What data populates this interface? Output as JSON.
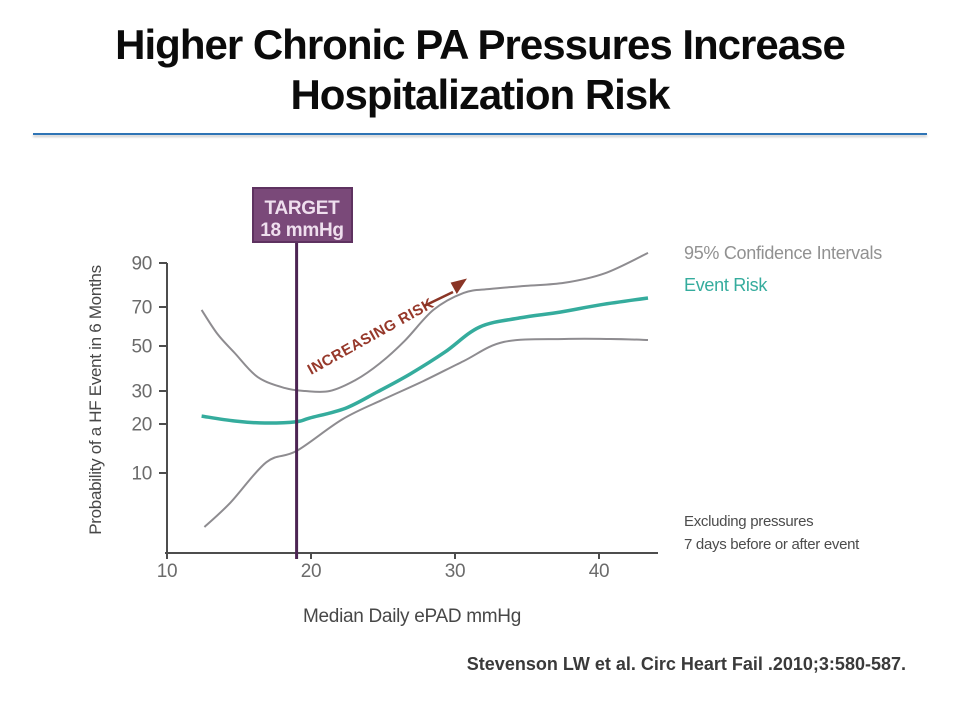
{
  "slide": {
    "title_line1": "Higher Chronic PA Pressures Increase",
    "title_line2": "Hospitalization Risk",
    "citation": "Stevenson LW et al. Circ Heart Fail .2010;3:580-587."
  },
  "chart_data": {
    "type": "line",
    "title": "",
    "xlabel": "Median Daily ePAD mmHg",
    "ylabel": "Probability of a HF Event in 6 Months",
    "x_ticks": [
      10,
      20,
      30,
      40
    ],
    "y_ticks": [
      10,
      20,
      30,
      50,
      70,
      90
    ],
    "xlim": [
      10,
      44
    ],
    "ylim": [
      0,
      95
    ],
    "y_scale": "nonlinear-probability",
    "grid": false,
    "legend_position": "top-right",
    "series": [
      {
        "name": "95% CI upper",
        "color": "#8e8c90",
        "x": [
          12.4,
          13.5,
          14.7,
          16.3,
          18.2,
          19.6,
          21.3,
          23.1,
          24.8,
          26.5,
          28.5,
          30.6,
          32.4,
          34.9,
          37.6,
          40.4,
          43.4
        ],
        "y": [
          68.5,
          56.2,
          46.9,
          36.2,
          31.3,
          30.0,
          30.0,
          34.9,
          42.4,
          52.6,
          68.5,
          76.4,
          78.2,
          79.6,
          81.0,
          85.3,
          92.2
        ]
      },
      {
        "name": "Event Risk",
        "color": "#35ac9d",
        "x": [
          12.4,
          14.7,
          16.8,
          19.0,
          19.9,
          22.4,
          24.6,
          26.9,
          29.3,
          31.7,
          34.5,
          37.3,
          40.1,
          43.4
        ],
        "y": [
          22.4,
          20.9,
          20.3,
          20.7,
          21.8,
          24.8,
          29.7,
          37.6,
          47.3,
          59.7,
          64.4,
          67.4,
          71.0,
          74.1
        ]
      },
      {
        "name": "95% CI lower",
        "color": "#8e8c90",
        "x": [
          12.6,
          14.4,
          16.9,
          19.0,
          22.2,
          25.1,
          27.8,
          30.6,
          33.4,
          37.6,
          40.8,
          43.4
        ],
        "y": [
          2.0,
          4.6,
          12.2,
          14.5,
          21.5,
          27.6,
          34.4,
          43.3,
          52.1,
          53.6,
          53.6,
          53.1
        ]
      }
    ],
    "annotations": {
      "target": {
        "line1": "TARGET",
        "line2": "18 mmHg",
        "x": 19
      },
      "increasing_risk": "INCREASING RISK"
    },
    "legend": [
      {
        "label": "95% Confidence Intervals",
        "color": "#8e8c90"
      },
      {
        "label": "Event Risk",
        "color": "#35ac9d"
      }
    ],
    "note_line1": "Excluding pressures",
    "note_line2": "7 days before or after event"
  },
  "colors": {
    "title_rule": "#2e74b5",
    "target_purple": "#7a4979",
    "target_line": "#4c2453",
    "annotation_red": "#96382a",
    "event_risk_teal": "#35ac9d",
    "ci_gray": "#8e8c90"
  }
}
